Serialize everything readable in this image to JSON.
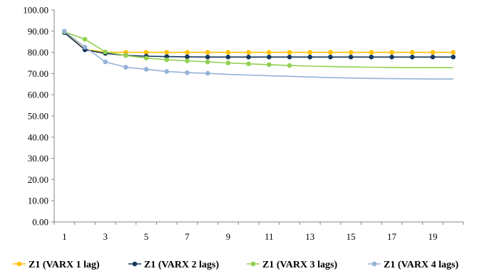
{
  "chart_data": {
    "type": "line",
    "title": "",
    "xlabel": "",
    "ylabel": "",
    "ylim": [
      0,
      100
    ],
    "xlim": [
      1,
      20
    ],
    "x": [
      1,
      2,
      3,
      4,
      5,
      6,
      7,
      8,
      9,
      10,
      11,
      12,
      13,
      14,
      15,
      16,
      17,
      18,
      19,
      20
    ],
    "x_tick_labels": [
      "1",
      "3",
      "5",
      "7",
      "9",
      "11",
      "13",
      "15",
      "17",
      "19"
    ],
    "x_tick_values": [
      1,
      3,
      5,
      7,
      9,
      11,
      13,
      15,
      17,
      19
    ],
    "y_tick_labels": [
      "0.00",
      "10.00",
      "20.00",
      "30.00",
      "40.00",
      "50.00",
      "60.00",
      "70.00",
      "80.00",
      "90.00",
      "100.00"
    ],
    "y_tick_values": [
      0,
      10,
      20,
      30,
      40,
      50,
      60,
      70,
      80,
      90,
      100
    ],
    "grid": false,
    "legend_position": "bottom",
    "series": [
      {
        "name": "Z1 (VARX 1 lag)",
        "color": "#FFC000",
        "marker_indices": [
          1,
          2,
          3,
          4,
          5,
          6,
          7,
          8,
          9,
          10,
          11,
          12,
          13,
          14,
          15,
          16,
          17,
          18,
          19,
          20
        ],
        "values": [
          89.5,
          81.5,
          80.0,
          80.0,
          80.0,
          80.0,
          80.0,
          80.0,
          80.0,
          80.0,
          80.0,
          80.0,
          80.0,
          80.0,
          80.0,
          80.0,
          80.0,
          80.0,
          80.0,
          80.0
        ]
      },
      {
        "name": "Z1 (VARX 2 lags)",
        "color": "#17375E",
        "marker_indices": [
          1,
          2,
          3,
          4,
          5,
          6,
          7,
          8,
          9,
          10,
          11,
          12,
          13,
          14,
          15,
          16,
          17,
          18,
          19,
          20
        ],
        "values": [
          89.3,
          81.2,
          79.5,
          78.6,
          78.2,
          78.0,
          77.9,
          77.8,
          77.8,
          77.8,
          77.8,
          77.8,
          77.8,
          77.8,
          77.8,
          77.8,
          77.8,
          77.8,
          77.8,
          77.8
        ]
      },
      {
        "name": "Z1 (VARX 3 lags)",
        "color": "#92D050",
        "marker_indices": [
          1,
          2,
          3,
          4,
          5,
          6,
          7,
          8,
          9,
          10,
          11,
          12
        ],
        "values": [
          89.7,
          86.2,
          80.2,
          78.5,
          77.3,
          76.5,
          76.0,
          75.5,
          75.0,
          74.6,
          74.2,
          73.8,
          73.5,
          73.3,
          73.1,
          73.0,
          72.9,
          72.8,
          72.8,
          72.8
        ]
      },
      {
        "name": "Z1 (VARX 4 lags)",
        "color": "#95B3D7",
        "marker_indices": [
          1,
          2,
          3,
          4,
          5,
          6,
          7,
          8
        ],
        "values": [
          90.0,
          82.5,
          75.5,
          73.0,
          72.0,
          71.0,
          70.4,
          70.1,
          69.6,
          69.3,
          69.0,
          68.7,
          68.4,
          68.1,
          67.9,
          67.7,
          67.6,
          67.5,
          67.4,
          67.4
        ]
      }
    ]
  }
}
